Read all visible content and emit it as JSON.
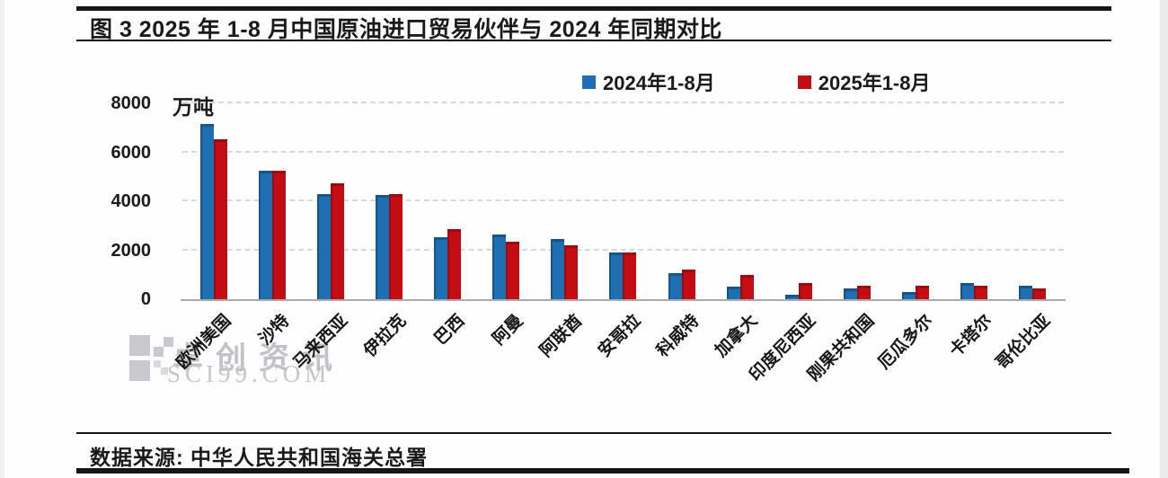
{
  "header": {
    "title": "图 3  2025 年 1-8 月中国原油进口贸易伙伴与 2024 年同期对比"
  },
  "footer": {
    "source_label": "数据来源: 中华人民共和国海关总署"
  },
  "watermark": {
    "brand_text": "卓创资讯",
    "domain_text": "SCI99.COM",
    "color": "#c4c4c8"
  },
  "chart_data": {
    "type": "bar",
    "title": "2025年1-8月中国原油进口贸易伙伴与2024年同期对比",
    "unit_label": "万吨",
    "categories": [
      "欧洲美国",
      "沙特",
      "马来西亚",
      "伊拉克",
      "巴西",
      "阿曼",
      "阿联酋",
      "安哥拉",
      "科威特",
      "加拿大",
      "印度尼西亚",
      "刚果共和国",
      "厄瓜多尔",
      "卡塔尔",
      "哥伦比亚"
    ],
    "series": [
      {
        "name": "2024年1-8月",
        "color": "#1E6FB2",
        "values": [
          7150,
          5250,
          4300,
          4250,
          2550,
          2650,
          2450,
          1900,
          1050,
          500,
          200,
          450,
          300,
          650,
          550
        ]
      },
      {
        "name": "2025年1-8月",
        "color": "#C30D12",
        "values": [
          6550,
          5250,
          4750,
          4300,
          2850,
          2350,
          2200,
          1900,
          1200,
          1000,
          650,
          550,
          550,
          550,
          450
        ]
      }
    ],
    "ylabel": "万吨",
    "ylim": [
      0,
      8000
    ],
    "yticks": [
      0,
      2000,
      4000,
      6000,
      8000
    ],
    "grid": "horizontal-dashed",
    "legend_position": "top-center"
  }
}
